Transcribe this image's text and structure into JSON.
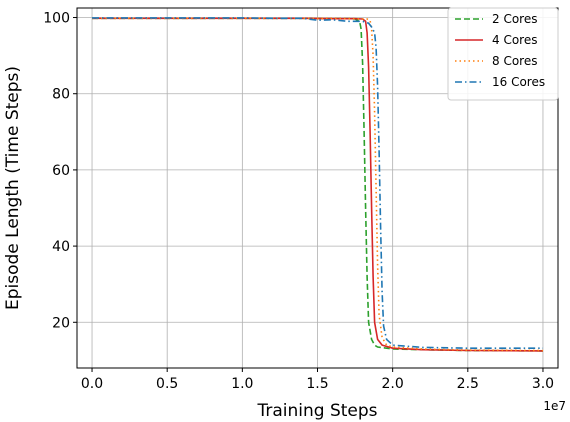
{
  "chart_data": {
    "type": "line",
    "xlabel": "Training Steps",
    "ylabel": "Episode Length (Time Steps)",
    "x_offset_label": "1e7",
    "xlim": [
      -0.1,
      3.1
    ],
    "ylim": [
      8,
      102.5
    ],
    "x_ticks": [
      0.0,
      0.5,
      1.0,
      1.5,
      2.0,
      2.5,
      3.0
    ],
    "x_tick_labels": [
      "0.0",
      "0.5",
      "1.0",
      "1.5",
      "2.0",
      "2.5",
      "3.0"
    ],
    "y_ticks": [
      20,
      40,
      60,
      80,
      100
    ],
    "y_tick_labels": [
      "20",
      "40",
      "60",
      "80",
      "100"
    ],
    "grid": true,
    "legend_position": "top-right",
    "series": [
      {
        "name": "2 Cores",
        "color": "#2ca02c",
        "dash": "dashed",
        "points": [
          [
            0.0,
            99.8
          ],
          [
            0.5,
            99.8
          ],
          [
            1.0,
            99.8
          ],
          [
            1.2,
            99.8
          ],
          [
            1.4,
            99.8
          ],
          [
            1.6,
            99.7
          ],
          [
            1.7,
            99.7
          ],
          [
            1.75,
            99.6
          ],
          [
            1.78,
            99.0
          ],
          [
            1.79,
            97.0
          ],
          [
            1.8,
            88.0
          ],
          [
            1.81,
            70.0
          ],
          [
            1.82,
            50.0
          ],
          [
            1.83,
            32.0
          ],
          [
            1.84,
            20.0
          ],
          [
            1.86,
            15.5
          ],
          [
            1.88,
            14.0
          ],
          [
            1.9,
            13.5
          ],
          [
            2.0,
            13.0
          ],
          [
            2.2,
            12.8
          ],
          [
            2.5,
            12.6
          ],
          [
            3.0,
            12.5
          ]
        ]
      },
      {
        "name": "4 Cores",
        "color": "#d62728",
        "dash": "solid",
        "points": [
          [
            0.0,
            99.8
          ],
          [
            0.5,
            99.8
          ],
          [
            1.0,
            99.8
          ],
          [
            1.2,
            99.8
          ],
          [
            1.4,
            99.8
          ],
          [
            1.6,
            99.7
          ],
          [
            1.75,
            99.7
          ],
          [
            1.8,
            99.6
          ],
          [
            1.82,
            99.0
          ],
          [
            1.83,
            96.0
          ],
          [
            1.84,
            87.0
          ],
          [
            1.85,
            70.0
          ],
          [
            1.86,
            50.0
          ],
          [
            1.87,
            32.0
          ],
          [
            1.88,
            20.0
          ],
          [
            1.9,
            15.5
          ],
          [
            1.93,
            14.0
          ],
          [
            2.0,
            13.2
          ],
          [
            2.2,
            12.8
          ],
          [
            2.5,
            12.6
          ],
          [
            3.0,
            12.5
          ]
        ]
      },
      {
        "name": "8 Cores",
        "color": "#ff7f0e",
        "dash": "dotted",
        "points": [
          [
            0.0,
            99.8
          ],
          [
            0.5,
            99.8
          ],
          [
            1.0,
            99.8
          ],
          [
            1.2,
            99.8
          ],
          [
            1.4,
            99.8
          ],
          [
            1.6,
            99.8
          ],
          [
            1.75,
            99.7
          ],
          [
            1.83,
            99.6
          ],
          [
            1.85,
            99.2
          ],
          [
            1.86,
            97.0
          ],
          [
            1.87,
            90.0
          ],
          [
            1.88,
            75.0
          ],
          [
            1.89,
            55.0
          ],
          [
            1.9,
            35.0
          ],
          [
            1.91,
            22.0
          ],
          [
            1.93,
            16.0
          ],
          [
            1.96,
            14.0
          ],
          [
            2.0,
            13.5
          ],
          [
            2.2,
            13.0
          ],
          [
            2.5,
            12.7
          ],
          [
            3.0,
            12.6
          ]
        ]
      },
      {
        "name": "16 Cores",
        "color": "#1f77b4",
        "dash": "dashdot",
        "points": [
          [
            0.0,
            99.9
          ],
          [
            0.5,
            99.9
          ],
          [
            1.0,
            99.9
          ],
          [
            1.2,
            99.8
          ],
          [
            1.4,
            99.8
          ],
          [
            1.5,
            99.3
          ],
          [
            1.6,
            99.4
          ],
          [
            1.7,
            99.0
          ],
          [
            1.8,
            99.0
          ],
          [
            1.84,
            98.5
          ],
          [
            1.86,
            97.5
          ],
          [
            1.88,
            96.0
          ],
          [
            1.89,
            92.0
          ],
          [
            1.9,
            82.0
          ],
          [
            1.91,
            65.0
          ],
          [
            1.92,
            45.0
          ],
          [
            1.93,
            28.0
          ],
          [
            1.94,
            19.0
          ],
          [
            1.96,
            15.5
          ],
          [
            2.0,
            14.0
          ],
          [
            2.2,
            13.4
          ],
          [
            2.5,
            13.2
          ],
          [
            3.0,
            13.2
          ]
        ]
      }
    ]
  }
}
